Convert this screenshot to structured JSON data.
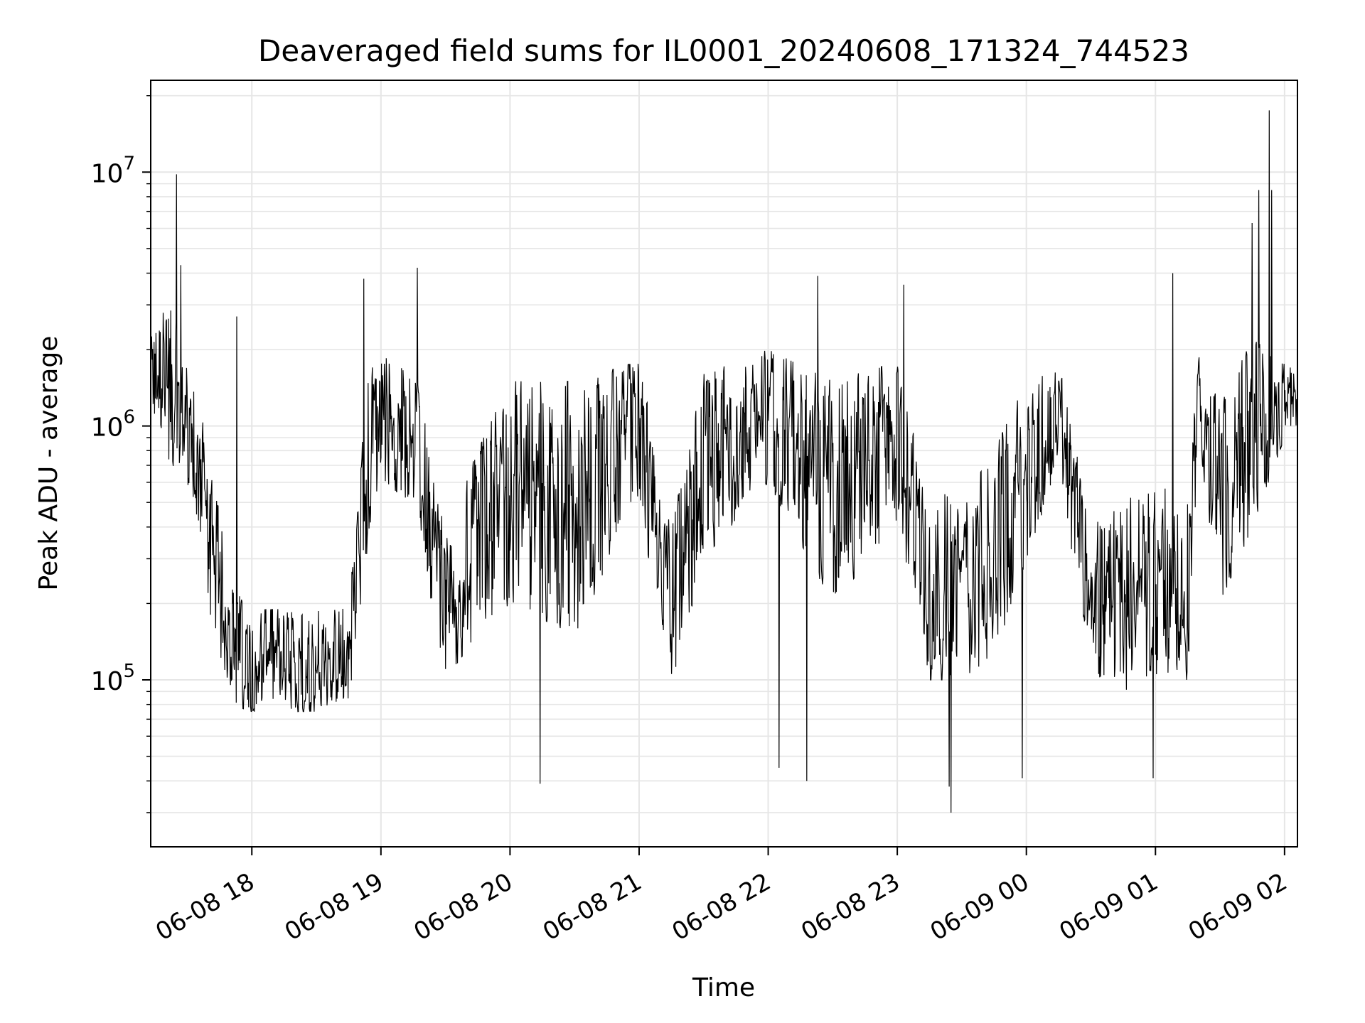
{
  "chart_data": {
    "type": "line",
    "title": "Deaveraged field sums for IL0001_20240608_171324_744523",
    "xlabel": "Time",
    "ylabel": "Peak ADU - average",
    "yscale": "log",
    "ylim": [
      22000,
      23000000
    ],
    "xlim": [
      "2024-06-08 17:13",
      "2024-06-09 02:06"
    ],
    "grid": true,
    "line_color": "#000000",
    "grid_color": "#e6e6e6",
    "x_ticks": [
      {
        "value": "2024-06-08 18:00",
        "label": "06-08 18"
      },
      {
        "value": "2024-06-08 19:00",
        "label": "06-08 19"
      },
      {
        "value": "2024-06-08 20:00",
        "label": "06-08 20"
      },
      {
        "value": "2024-06-08 21:00",
        "label": "06-08 21"
      },
      {
        "value": "2024-06-08 22:00",
        "label": "06-08 22"
      },
      {
        "value": "2024-06-08 23:00",
        "label": "06-08 23"
      },
      {
        "value": "2024-06-09 00:00",
        "label": "06-09 00"
      },
      {
        "value": "2024-06-09 01:00",
        "label": "06-09 01"
      },
      {
        "value": "2024-06-09 02:00",
        "label": "06-09 02"
      }
    ],
    "y_ticks": [
      {
        "value": 100000,
        "base": "10",
        "exp": "5"
      },
      {
        "value": 1000000,
        "base": "10",
        "exp": "6"
      },
      {
        "value": 10000000,
        "base": "10",
        "exp": "7"
      }
    ],
    "series": [
      {
        "envelope": [
          {
            "x": "2024-06-08 17:13",
            "lo": 1100000,
            "hi": 2200000
          },
          {
            "x": "2024-06-08 17:20",
            "lo": 800000,
            "hi": 3200000
          },
          {
            "x": "2024-06-08 17:30",
            "lo": 400000,
            "hi": 2000000
          },
          {
            "x": "2024-06-08 17:40",
            "lo": 180000,
            "hi": 800000
          },
          {
            "x": "2024-06-08 17:50",
            "lo": 80000,
            "hi": 250000
          },
          {
            "x": "2024-06-08 18:00",
            "lo": 75000,
            "hi": 190000
          },
          {
            "x": "2024-06-08 18:15",
            "lo": 75000,
            "hi": 190000
          },
          {
            "x": "2024-06-08 18:30",
            "lo": 75000,
            "hi": 190000
          },
          {
            "x": "2024-06-08 18:45",
            "lo": 80000,
            "hi": 200000
          },
          {
            "x": "2024-06-08 18:53",
            "lo": 300000,
            "hi": 1500000
          },
          {
            "x": "2024-06-08 19:00",
            "lo": 600000,
            "hi": 2000000
          },
          {
            "x": "2024-06-08 19:15",
            "lo": 500000,
            "hi": 1800000
          },
          {
            "x": "2024-06-08 19:30",
            "lo": 100000,
            "hi": 400000
          },
          {
            "x": "2024-06-08 19:45",
            "lo": 150000,
            "hi": 800000
          },
          {
            "x": "2024-06-08 20:00",
            "lo": 200000,
            "hi": 1500000
          },
          {
            "x": "2024-06-08 20:30",
            "lo": 150000,
            "hi": 1500000
          },
          {
            "x": "2024-06-08 21:00",
            "lo": 500000,
            "hi": 1800000
          },
          {
            "x": "2024-06-08 21:15",
            "lo": 90000,
            "hi": 400000
          },
          {
            "x": "2024-06-08 21:30",
            "lo": 300000,
            "hi": 1600000
          },
          {
            "x": "2024-06-08 22:00",
            "lo": 600000,
            "hi": 2000000
          },
          {
            "x": "2024-06-08 22:30",
            "lo": 200000,
            "hi": 1500000
          },
          {
            "x": "2024-06-08 23:00",
            "lo": 400000,
            "hi": 1800000
          },
          {
            "x": "2024-06-08 23:15",
            "lo": 100000,
            "hi": 600000
          },
          {
            "x": "2024-06-08 23:30",
            "lo": 100000,
            "hi": 500000
          },
          {
            "x": "2024-06-08 23:45",
            "lo": 120000,
            "hi": 800000
          },
          {
            "x": "2024-06-09 00:00",
            "lo": 300000,
            "hi": 1500000
          },
          {
            "x": "2024-06-09 00:15",
            "lo": 700000,
            "hi": 1800000
          },
          {
            "x": "2024-06-09 00:30",
            "lo": 100000,
            "hi": 400000
          },
          {
            "x": "2024-06-09 00:45",
            "lo": 90000,
            "hi": 500000
          },
          {
            "x": "2024-06-09 01:00",
            "lo": 100000,
            "hi": 600000
          },
          {
            "x": "2024-06-09 01:15",
            "lo": 100000,
            "hi": 500000
          },
          {
            "x": "2024-06-09 01:20",
            "lo": 900000,
            "hi": 2000000
          },
          {
            "x": "2024-06-09 01:30",
            "lo": 200000,
            "hi": 1200000
          },
          {
            "x": "2024-06-09 01:45",
            "lo": 400000,
            "hi": 2200000
          },
          {
            "x": "2024-06-09 02:00",
            "lo": 900000,
            "hi": 1800000
          },
          {
            "x": "2024-06-09 02:06",
            "lo": 900000,
            "hi": 1600000
          }
        ],
        "peaks": [
          {
            "x": "2024-06-08 17:25",
            "y": 9800000
          },
          {
            "x": "2024-06-08 17:27",
            "y": 4300000
          },
          {
            "x": "2024-06-08 17:53",
            "y": 2700000
          },
          {
            "x": "2024-06-08 18:52",
            "y": 3800000
          },
          {
            "x": "2024-06-08 19:17",
            "y": 4200000
          },
          {
            "x": "2024-06-08 20:14",
            "y": 39000
          },
          {
            "x": "2024-06-08 22:05",
            "y": 45000
          },
          {
            "x": "2024-06-08 22:23",
            "y": 3900000
          },
          {
            "x": "2024-06-08 22:18",
            "y": 40000
          },
          {
            "x": "2024-06-08 23:03",
            "y": 3600000
          },
          {
            "x": "2024-06-08 23:25",
            "y": 30000
          },
          {
            "x": "2024-06-08 23:24",
            "y": 38000
          },
          {
            "x": "2024-06-08 23:58",
            "y": 41000
          },
          {
            "x": "2024-06-09 00:59",
            "y": 41000
          },
          {
            "x": "2024-06-09 01:08",
            "y": 4000000
          },
          {
            "x": "2024-06-09 01:45",
            "y": 6300000
          },
          {
            "x": "2024-06-09 01:48",
            "y": 8500000
          },
          {
            "x": "2024-06-09 01:53",
            "y": 17500000
          },
          {
            "x": "2024-06-09 01:54",
            "y": 8500000
          }
        ]
      }
    ]
  }
}
